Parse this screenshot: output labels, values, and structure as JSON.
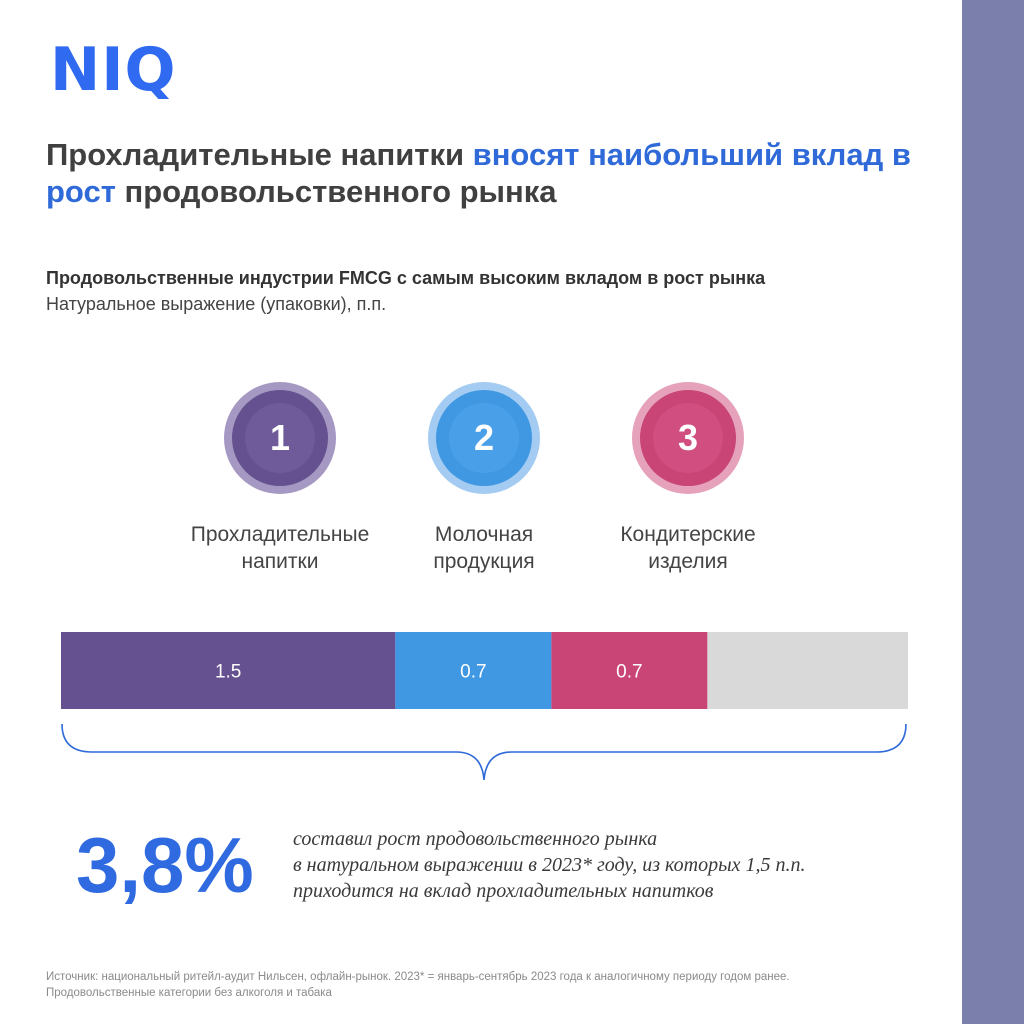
{
  "logo": {
    "text": "NIQ",
    "color": "#2f6af0"
  },
  "headline": {
    "part1": "Прохладительные напитки ",
    "highlight": "вносят наибольший вклад в рост",
    "part2": " продовольственного рынка"
  },
  "subtitle": "Продовольственные индустрии FMCG с самым высоким вкладом в рост рынка",
  "subtitle2": "Натуральное выражение (упаковки), п.п.",
  "ranks": [
    {
      "number": "1",
      "label_line1": "Прохладительные",
      "label_line2": "напитки",
      "color": "#65518f",
      "ring": "#a599c3"
    },
    {
      "number": "2",
      "label_line1": "Молочная",
      "label_line2": "продукция",
      "color": "#4097e2",
      "ring": "#a4cbf2"
    },
    {
      "number": "3",
      "label_line1": "Кондитерские",
      "label_line2": "изделия",
      "color": "#c84576",
      "ring": "#e6a2bb"
    }
  ],
  "chart_data": {
    "type": "bar",
    "orientation": "horizontal-stacked",
    "unit": "п.п.",
    "total": 3.8,
    "series": [
      {
        "name": "Прохладительные напитки",
        "value": 1.5,
        "label": "1.5",
        "color": "#65518f"
      },
      {
        "name": "Молочная продукция",
        "value": 0.7,
        "label": "0.7",
        "color": "#4097e2"
      },
      {
        "name": "Кондитерские изделия",
        "value": 0.7,
        "label": "0.7",
        "color": "#c84576"
      },
      {
        "name": "",
        "value": 0.9,
        "label": "",
        "color": "#d9d9d9"
      }
    ]
  },
  "highlight_stat": {
    "value": "3,8%",
    "line1": "составил рост продовольственного рынка",
    "line2": "в натуральном выражении в 2023* году, из которых 1,5 п.п.",
    "line3": "приходится на вклад прохладительных напитков"
  },
  "source": {
    "line1": "Источник: национальный ритейл-аудит Нильсен, офлайн-рынок. 2023* = январь-сентябрь 2023 года к аналогичному периоду годом ранее.",
    "line2": "Продовольственные категории без алкоголя и табака"
  },
  "colors": {
    "side_band": "#7a7fab",
    "accent": "#2f6ad8"
  }
}
